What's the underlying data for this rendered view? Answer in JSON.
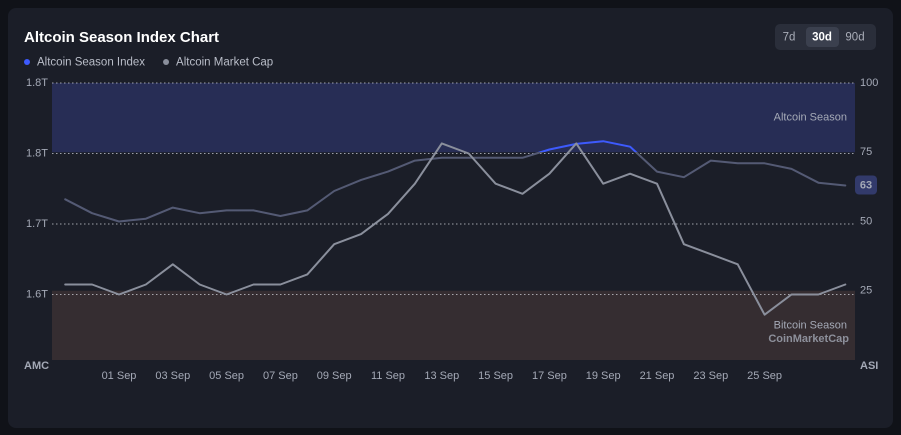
{
  "chart_data": {
    "type": "line",
    "title": "Altcoin Season Index Chart",
    "range_options": [
      "7d",
      "30d",
      "90d"
    ],
    "selected_range": 1,
    "y_label": "AMC",
    "y2_label": "ASI",
    "watermark": "CoinMarketCap",
    "categories": [
      null,
      null,
      "01 Sep",
      null,
      "03 Sep",
      null,
      "05 Sep",
      null,
      "07 Sep",
      null,
      "09 Sep",
      null,
      "11 Sep",
      null,
      "13 Sep",
      null,
      "15 Sep",
      null,
      "17 Sep",
      null,
      "19 Sep",
      null,
      "21 Sep",
      null,
      "23 Sep",
      null,
      "25 Sep",
      null,
      null,
      null
    ],
    "ylim": [
      1.555,
      1.83
    ],
    "yticks": [
      {
        "value": 1.62,
        "label": "1.6T"
      },
      {
        "value": 1.69,
        "label": "1.7T"
      },
      {
        "value": 1.76,
        "label": "1.8T"
      },
      {
        "value": 1.83,
        "label": "1.8T"
      }
    ],
    "y2lim": [
      0,
      100
    ],
    "y2ticks": [
      25,
      50,
      75,
      100
    ],
    "grid": true,
    "zones": [
      {
        "label": "Altcoin Season",
        "from": 75,
        "to": 100,
        "color": "#272d55"
      },
      {
        "label": "Bitcoin Season",
        "from": 0,
        "to": 25,
        "color": "#352d31"
      }
    ],
    "series": [
      {
        "name": "Altcoin Season Index",
        "color": "#3d5afe",
        "line_color": "#545a74",
        "axis": "y2",
        "values": [
          58,
          53,
          50,
          51,
          55,
          53,
          54,
          54,
          52,
          54,
          61,
          65,
          68,
          72,
          73,
          73,
          73,
          73,
          76,
          78,
          79,
          77,
          68,
          66,
          72,
          71,
          71,
          69,
          64,
          63
        ]
      },
      {
        "name": "Altcoin Market Cap",
        "color": "#8a8f9c",
        "line_color": "#8a8f9c",
        "values": [
          1.63,
          1.63,
          1.62,
          1.63,
          1.65,
          1.63,
          1.62,
          1.63,
          1.63,
          1.64,
          1.67,
          1.68,
          1.7,
          1.73,
          1.77,
          1.76,
          1.73,
          1.72,
          1.74,
          1.77,
          1.73,
          1.74,
          1.73,
          1.67,
          1.66,
          1.65,
          1.6,
          1.62,
          1.62,
          1.63
        ]
      }
    ]
  }
}
